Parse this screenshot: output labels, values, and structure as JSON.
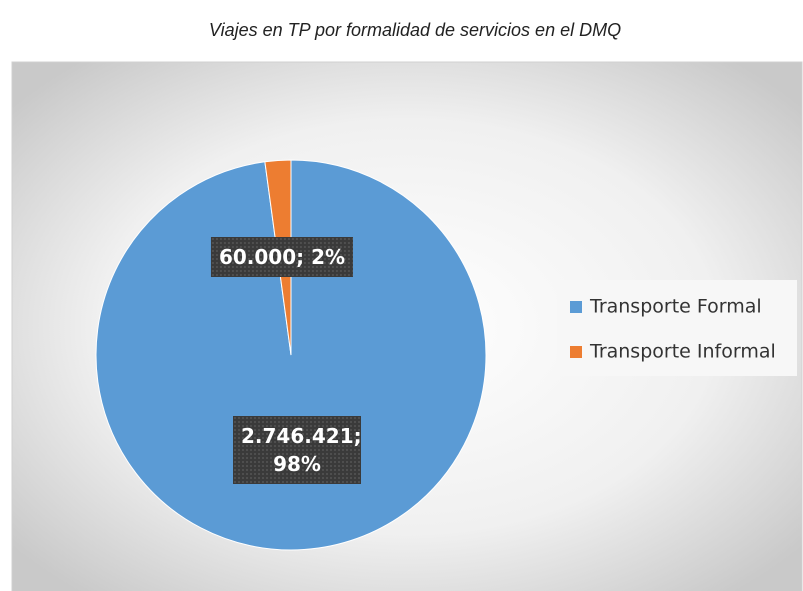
{
  "chart_data": {
    "type": "pie",
    "title": "Viajes en TP por formalidad de servicios en el DMQ",
    "series": [
      {
        "name": "Transporte Formal",
        "color": "#5b9bd5"
      },
      {
        "name": "Transporte Informal",
        "color": "#ed7d31"
      }
    ],
    "values": [
      2746421,
      60000
    ],
    "value_labels": [
      "2.746.421; 98%",
      "60.000; 2%"
    ],
    "legend": "right"
  }
}
